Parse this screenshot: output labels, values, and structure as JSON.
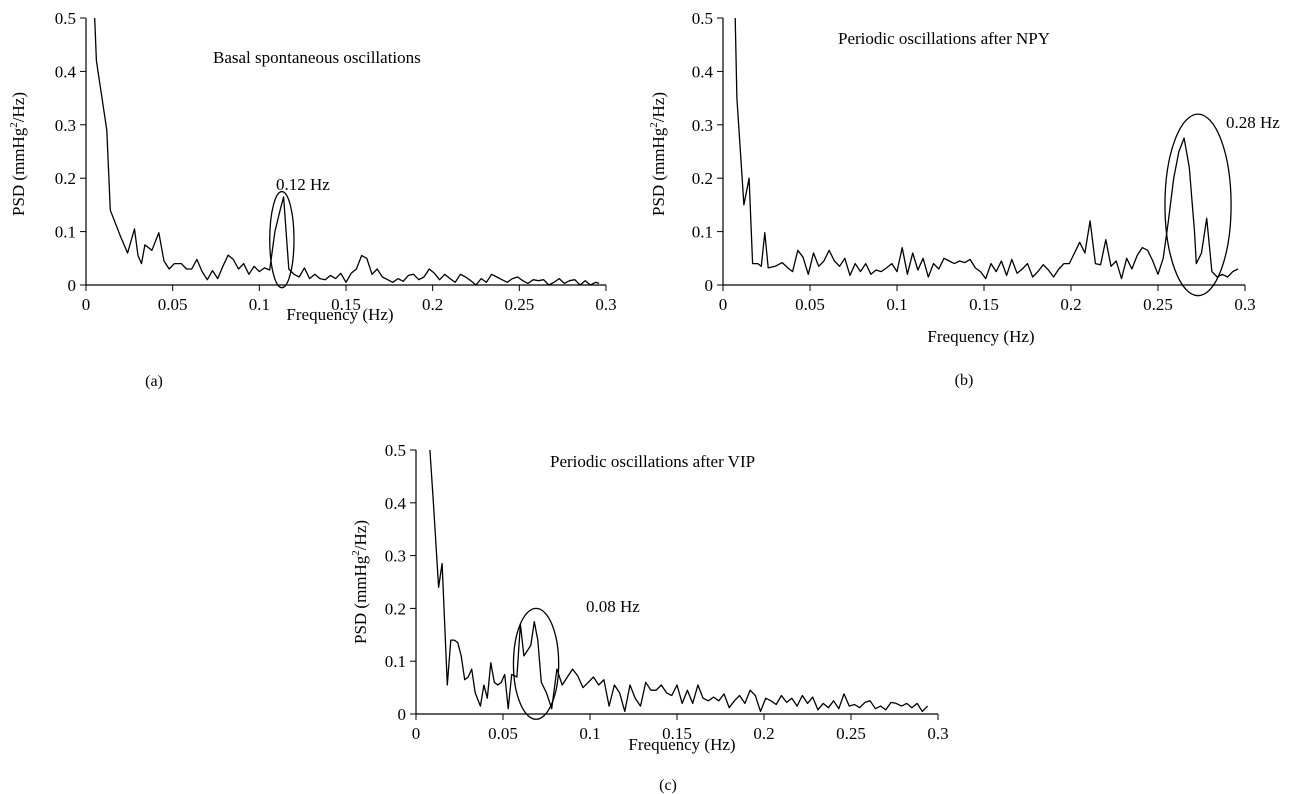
{
  "chart_data": [
    {
      "panel": "(a)",
      "type": "line",
      "title": "Basal spontaneous oscillations",
      "xlabel": "Frequency (Hz)",
      "ylabel": "PSD (mmHg²/Hz)",
      "xlim": [
        0,
        0.3
      ],
      "ylim": [
        0,
        0.5
      ],
      "xticks": [
        "0",
        "0.05",
        "0.1",
        "0.15",
        "0.2",
        "0.25",
        "0.3"
      ],
      "yticks": [
        "0",
        "0.1",
        "0.2",
        "0.3",
        "0.4",
        "0.5"
      ],
      "annotation": {
        "text": "0.12 Hz",
        "center": [
          0.113,
          0.085
        ],
        "rx": 0.007,
        "ry": 0.09
      },
      "x": [
        0.005,
        0.006,
        0.012,
        0.014,
        0.02,
        0.024,
        0.028,
        0.03,
        0.032,
        0.034,
        0.038,
        0.042,
        0.045,
        0.048,
        0.051,
        0.055,
        0.058,
        0.061,
        0.064,
        0.067,
        0.07,
        0.073,
        0.076,
        0.079,
        0.082,
        0.085,
        0.088,
        0.091,
        0.094,
        0.097,
        0.1,
        0.103,
        0.106,
        0.109,
        0.112,
        0.114,
        0.117,
        0.12,
        0.123,
        0.126,
        0.129,
        0.132,
        0.135,
        0.138,
        0.141,
        0.144,
        0.147,
        0.15,
        0.153,
        0.156,
        0.159,
        0.162,
        0.165,
        0.168,
        0.171,
        0.174,
        0.177,
        0.18,
        0.183,
        0.186,
        0.189,
        0.192,
        0.195,
        0.198,
        0.201,
        0.204,
        0.207,
        0.21,
        0.213,
        0.216,
        0.219,
        0.222,
        0.225,
        0.228,
        0.231,
        0.234,
        0.237,
        0.24,
        0.243,
        0.246,
        0.249,
        0.252,
        0.255,
        0.258,
        0.261,
        0.264,
        0.267,
        0.27,
        0.273,
        0.276,
        0.279,
        0.282,
        0.285,
        0.288,
        0.291,
        0.294,
        0.296
      ],
      "y": [
        0.5,
        0.42,
        0.29,
        0.14,
        0.09,
        0.06,
        0.105,
        0.055,
        0.04,
        0.075,
        0.065,
        0.098,
        0.045,
        0.03,
        0.04,
        0.04,
        0.03,
        0.03,
        0.048,
        0.025,
        0.01,
        0.027,
        0.012,
        0.035,
        0.056,
        0.048,
        0.03,
        0.04,
        0.02,
        0.035,
        0.025,
        0.032,
        0.028,
        0.1,
        0.14,
        0.165,
        0.03,
        0.02,
        0.015,
        0.032,
        0.012,
        0.02,
        0.012,
        0.01,
        0.018,
        0.012,
        0.022,
        0.005,
        0.022,
        0.03,
        0.055,
        0.05,
        0.02,
        0.03,
        0.015,
        0.01,
        0.005,
        0.012,
        0.007,
        0.018,
        0.02,
        0.01,
        0.015,
        0.03,
        0.022,
        0.01,
        0.02,
        0.012,
        0.005,
        0.02,
        0.015,
        0.008,
        0.0,
        0.012,
        0.005,
        0.02,
        0.015,
        0.01,
        0.005,
        0.012,
        0.015,
        0.008,
        0.003,
        0.01,
        0.008,
        0.01,
        0.0,
        0.005,
        0.012,
        0.003,
        0.008,
        0.01,
        0.0,
        0.008,
        0.0,
        0.005,
        0.003
      ]
    },
    {
      "panel": "(b)",
      "type": "line",
      "title": "Periodic oscillations after NPY",
      "xlabel": "Frequency (Hz)",
      "ylabel": "PSD (mmHg²/Hz)",
      "xlim": [
        0,
        0.3
      ],
      "ylim": [
        0,
        0.5
      ],
      "xticks": [
        "0",
        "0.05",
        "0.1",
        "0.15",
        "0.2",
        "0.25",
        "0.3"
      ],
      "yticks": [
        "0",
        "0.1",
        "0.2",
        "0.3",
        "0.4",
        "0.5"
      ],
      "annotation": {
        "text": "0.28 Hz",
        "center": [
          0.273,
          0.15
        ],
        "rx": 0.019,
        "ry": 0.17
      },
      "x": [
        0.007,
        0.008,
        0.012,
        0.015,
        0.017,
        0.02,
        0.022,
        0.024,
        0.026,
        0.03,
        0.034,
        0.038,
        0.04,
        0.043,
        0.046,
        0.049,
        0.052,
        0.055,
        0.058,
        0.061,
        0.064,
        0.067,
        0.07,
        0.073,
        0.076,
        0.079,
        0.082,
        0.085,
        0.088,
        0.091,
        0.094,
        0.097,
        0.1,
        0.103,
        0.106,
        0.109,
        0.112,
        0.115,
        0.118,
        0.121,
        0.124,
        0.127,
        0.13,
        0.133,
        0.136,
        0.139,
        0.142,
        0.145,
        0.148,
        0.151,
        0.154,
        0.157,
        0.16,
        0.163,
        0.166,
        0.169,
        0.172,
        0.175,
        0.178,
        0.181,
        0.184,
        0.187,
        0.19,
        0.193,
        0.196,
        0.199,
        0.202,
        0.205,
        0.208,
        0.211,
        0.214,
        0.217,
        0.22,
        0.223,
        0.226,
        0.229,
        0.232,
        0.235,
        0.238,
        0.241,
        0.244,
        0.247,
        0.25,
        0.253,
        0.256,
        0.259,
        0.262,
        0.265,
        0.268,
        0.271,
        0.272,
        0.275,
        0.278,
        0.281,
        0.284,
        0.287,
        0.29,
        0.293,
        0.296
      ],
      "y": [
        0.5,
        0.35,
        0.15,
        0.2,
        0.04,
        0.04,
        0.035,
        0.098,
        0.032,
        0.035,
        0.042,
        0.03,
        0.025,
        0.065,
        0.052,
        0.02,
        0.06,
        0.035,
        0.045,
        0.065,
        0.045,
        0.035,
        0.05,
        0.018,
        0.04,
        0.025,
        0.04,
        0.02,
        0.028,
        0.025,
        0.032,
        0.04,
        0.025,
        0.07,
        0.02,
        0.06,
        0.028,
        0.05,
        0.015,
        0.04,
        0.03,
        0.05,
        0.045,
        0.04,
        0.045,
        0.042,
        0.048,
        0.032,
        0.025,
        0.012,
        0.04,
        0.025,
        0.045,
        0.018,
        0.048,
        0.022,
        0.03,
        0.04,
        0.015,
        0.025,
        0.038,
        0.028,
        0.015,
        0.03,
        0.04,
        0.04,
        0.06,
        0.08,
        0.06,
        0.12,
        0.04,
        0.038,
        0.085,
        0.035,
        0.045,
        0.012,
        0.05,
        0.03,
        0.055,
        0.07,
        0.065,
        0.045,
        0.02,
        0.05,
        0.12,
        0.2,
        0.25,
        0.275,
        0.22,
        0.1,
        0.04,
        0.06,
        0.125,
        0.025,
        0.015,
        0.02,
        0.015,
        0.025,
        0.03
      ]
    },
    {
      "panel": "(c)",
      "type": "line",
      "title": "Periodic oscillations after VIP",
      "xlabel": "Frequency (Hz)",
      "ylabel": "PSD (mmHg²/Hz)",
      "xlim": [
        0,
        0.3
      ],
      "ylim": [
        0,
        0.5
      ],
      "xticks": [
        "0",
        "0.05",
        "0.1",
        "0.15",
        "0.2",
        "0.25",
        "0.3"
      ],
      "yticks": [
        "0",
        "0.1",
        "0.2",
        "0.3",
        "0.4",
        "0.5"
      ],
      "annotation": {
        "text": "0.08 Hz",
        "center": [
          0.069,
          0.095
        ],
        "rx": 0.013,
        "ry": 0.105
      },
      "x": [
        0.008,
        0.01,
        0.013,
        0.015,
        0.018,
        0.02,
        0.022,
        0.024,
        0.026,
        0.028,
        0.03,
        0.032,
        0.034,
        0.037,
        0.039,
        0.041,
        0.043,
        0.045,
        0.047,
        0.049,
        0.051,
        0.053,
        0.055,
        0.058,
        0.06,
        0.062,
        0.064,
        0.066,
        0.068,
        0.07,
        0.072,
        0.075,
        0.078,
        0.081,
        0.084,
        0.087,
        0.09,
        0.093,
        0.096,
        0.099,
        0.102,
        0.105,
        0.108,
        0.111,
        0.114,
        0.117,
        0.12,
        0.123,
        0.126,
        0.129,
        0.132,
        0.135,
        0.138,
        0.141,
        0.144,
        0.147,
        0.15,
        0.153,
        0.156,
        0.159,
        0.162,
        0.165,
        0.168,
        0.171,
        0.174,
        0.177,
        0.18,
        0.183,
        0.186,
        0.189,
        0.192,
        0.195,
        0.198,
        0.201,
        0.204,
        0.207,
        0.21,
        0.213,
        0.216,
        0.219,
        0.222,
        0.225,
        0.228,
        0.231,
        0.234,
        0.237,
        0.24,
        0.243,
        0.246,
        0.249,
        0.252,
        0.255,
        0.258,
        0.261,
        0.264,
        0.267,
        0.27,
        0.273,
        0.276,
        0.279,
        0.282,
        0.285,
        0.288,
        0.291,
        0.294
      ],
      "y": [
        0.5,
        0.4,
        0.24,
        0.285,
        0.055,
        0.14,
        0.14,
        0.135,
        0.11,
        0.065,
        0.07,
        0.085,
        0.04,
        0.015,
        0.055,
        0.03,
        0.097,
        0.06,
        0.055,
        0.06,
        0.075,
        0.01,
        0.075,
        0.07,
        0.17,
        0.11,
        0.12,
        0.13,
        0.175,
        0.14,
        0.06,
        0.04,
        0.01,
        0.085,
        0.055,
        0.07,
        0.085,
        0.072,
        0.05,
        0.06,
        0.07,
        0.055,
        0.065,
        0.015,
        0.055,
        0.04,
        0.005,
        0.055,
        0.03,
        0.015,
        0.06,
        0.045,
        0.045,
        0.055,
        0.04,
        0.035,
        0.055,
        0.02,
        0.045,
        0.02,
        0.055,
        0.03,
        0.025,
        0.032,
        0.025,
        0.038,
        0.012,
        0.025,
        0.035,
        0.02,
        0.045,
        0.035,
        0.005,
        0.03,
        0.025,
        0.018,
        0.035,
        0.022,
        0.03,
        0.015,
        0.035,
        0.02,
        0.032,
        0.008,
        0.02,
        0.012,
        0.025,
        0.01,
        0.038,
        0.015,
        0.018,
        0.012,
        0.022,
        0.025,
        0.01,
        0.015,
        0.008,
        0.022,
        0.02,
        0.015,
        0.02,
        0.012,
        0.02,
        0.005,
        0.015
      ]
    }
  ]
}
